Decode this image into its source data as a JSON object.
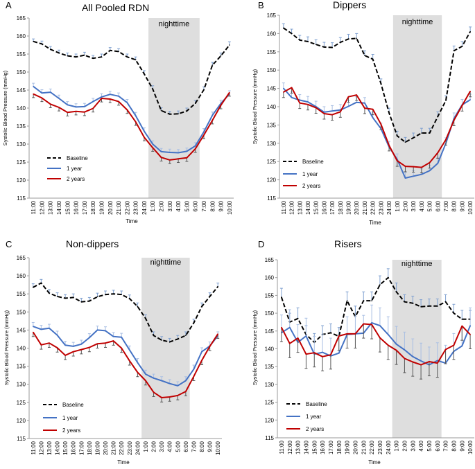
{
  "chart_data": [
    {
      "panel_letter": "A",
      "type": "line",
      "title": "All Pooled RDN",
      "xlabel": "Time",
      "ylabel": "Systolic Blood Pressure (mmHg)",
      "ylim": [
        115,
        165
      ],
      "yticks": [
        "115",
        "120",
        "125",
        "130",
        "135",
        "140",
        "145",
        "150",
        "155",
        "160",
        "165"
      ],
      "categories": [
        "11:00",
        "12:00",
        "13:00",
        "14:00",
        "15:00",
        "16:00",
        "17:00",
        "18:00",
        "19:00",
        "20:00",
        "21:00",
        "22:00",
        "23:00",
        "24:00",
        "1:00",
        "2:00",
        "3:00",
        "4:00",
        "5:00",
        "6:00",
        "7:00",
        "8:00",
        "9:00",
        "10:00"
      ],
      "night_label": "nighttime",
      "night_range": [
        14,
        19
      ],
      "series": [
        {
          "name": "Baseline",
          "style": "dashed",
          "color": "#000000",
          "values": [
            158.5,
            157.8,
            156.3,
            155.3,
            154.5,
            154.2,
            154.7,
            153.8,
            154.2,
            156.0,
            155.7,
            154.2,
            153.4,
            149.5,
            145.3,
            139.3,
            138.3,
            138.4,
            139.2,
            141.3,
            145.1,
            151.9,
            154.5,
            157.5
          ],
          "errors": [
            0.7,
            0.8,
            0.8,
            0.8,
            0.8,
            0.8,
            0.8,
            0.8,
            0.8,
            0.8,
            0.8,
            0.8,
            0.8,
            0.9,
            0.9,
            0.8,
            0.8,
            0.8,
            0.8,
            0.8,
            0.8,
            0.8,
            0.8,
            0.9
          ]
        },
        {
          "name": "1 year",
          "style": "solid",
          "color": "#4472C4",
          "values": [
            146.0,
            144.2,
            144.4,
            142.7,
            140.9,
            140.3,
            140.4,
            141.8,
            143.1,
            143.8,
            143.3,
            141.5,
            137.9,
            133.6,
            130.0,
            127.9,
            127.7,
            127.6,
            128.0,
            129.5,
            133.4,
            138.0,
            141.3,
            143.9
          ],
          "errors": [
            0.9,
            0.9,
            0.9,
            0.9,
            0.9,
            0.9,
            0.9,
            0.9,
            0.9,
            0.9,
            0.9,
            0.9,
            0.9,
            0.9,
            0.9,
            0.9,
            0.9,
            0.9,
            0.9,
            0.9,
            0.9,
            0.9,
            0.9,
            0.9
          ]
        },
        {
          "name": "2 years",
          "style": "solid",
          "color": "#C00000",
          "values": [
            143.9,
            142.8,
            141.1,
            140.2,
            138.8,
            139.1,
            138.9,
            139.9,
            142.7,
            142.5,
            141.8,
            139.5,
            136.2,
            131.9,
            129.0,
            126.3,
            125.6,
            125.9,
            126.2,
            128.7,
            132.5,
            136.6,
            140.8,
            144.3
          ],
          "errors": [
            1.0,
            1.0,
            1.0,
            1.0,
            1.0,
            1.0,
            1.0,
            1.0,
            1.0,
            1.0,
            1.0,
            1.0,
            1.0,
            1.0,
            1.0,
            1.0,
            1.0,
            1.0,
            1.0,
            1.0,
            1.0,
            1.0,
            1.0,
            1.0
          ]
        }
      ]
    },
    {
      "panel_letter": "B",
      "type": "line",
      "title": "Dippers",
      "xlabel": "Time",
      "ylabel": "Systolic Blood Pressure (mmHg)",
      "ylim": [
        115,
        165
      ],
      "yticks": [
        "115",
        "120",
        "125",
        "130",
        "135",
        "140",
        "145",
        "150",
        "155",
        "160",
        "165"
      ],
      "categories": [
        "11:00",
        "12:00",
        "13:00",
        "14:00",
        "15:00",
        "16:00",
        "17:00",
        "18:00",
        "19:00",
        "20:00",
        "21:00",
        "22:00",
        "23:00",
        "24:00",
        "1:00",
        "2:00",
        "3:00",
        "4:00",
        "5:00",
        "6:00",
        "7:00",
        "8:00",
        "9:00",
        "10:00"
      ],
      "night_label": "nighttime",
      "night_range": [
        14,
        19
      ],
      "series": [
        {
          "name": "Baseline",
          "style": "dashed",
          "color": "#000000",
          "values": [
            161.5,
            160.0,
            158.2,
            157.8,
            157.0,
            156.3,
            156.2,
            157.6,
            158.5,
            158.7,
            154.0,
            153.0,
            146.3,
            138.3,
            132.0,
            130.3,
            131.5,
            132.8,
            132.8,
            137.3,
            141.7,
            155.3,
            156.5,
            160.5
          ],
          "errors": [
            1.2,
            1.2,
            1.3,
            1.3,
            1.3,
            1.3,
            1.3,
            1.3,
            1.3,
            1.3,
            1.3,
            1.3,
            1.3,
            1.3,
            1.3,
            1.3,
            1.3,
            1.3,
            1.3,
            1.3,
            1.3,
            1.3,
            1.3,
            1.3
          ]
        },
        {
          "name": "1 year",
          "style": "solid",
          "color": "#4472C4",
          "values": [
            145.0,
            142.5,
            141.8,
            141.3,
            140.0,
            138.5,
            138.8,
            139.1,
            140.1,
            141.2,
            141.0,
            137.0,
            134.0,
            129.0,
            125.6,
            120.5,
            121.0,
            121.5,
            122.5,
            124.5,
            130.0,
            136.8,
            140.5,
            141.9
          ],
          "errors": [
            1.5,
            1.5,
            1.5,
            1.5,
            1.5,
            1.5,
            1.5,
            1.5,
            1.5,
            1.5,
            1.5,
            1.5,
            1.5,
            1.5,
            1.5,
            1.5,
            1.5,
            1.5,
            1.5,
            1.5,
            1.5,
            1.5,
            1.5,
            1.5
          ]
        },
        {
          "name": "2 years",
          "style": "solid",
          "color": "#C00000",
          "values": [
            144.0,
            145.2,
            141.0,
            140.6,
            139.7,
            138.1,
            137.8,
            138.6,
            142.7,
            143.2,
            139.6,
            139.3,
            135.2,
            129.4,
            125.2,
            123.7,
            123.6,
            123.4,
            124.7,
            127.4,
            131.0,
            136.3,
            140.3,
            144.2
          ],
          "errors": [
            1.5,
            1.5,
            1.5,
            1.5,
            1.5,
            1.5,
            1.5,
            1.5,
            1.5,
            1.5,
            1.5,
            1.5,
            1.5,
            1.5,
            1.5,
            1.5,
            1.5,
            1.5,
            1.5,
            1.5,
            1.5,
            1.5,
            1.5,
            1.5
          ]
        }
      ]
    },
    {
      "panel_letter": "C",
      "type": "line",
      "title": "Non-dippers",
      "xlabel": "Time",
      "ylabel": "Systolic Blood Pressure (mmHg)",
      "ylim": [
        115,
        165
      ],
      "yticks": [
        "115",
        "120",
        "125",
        "130",
        "135",
        "140",
        "145",
        "150",
        "155",
        "160",
        "165"
      ],
      "categories": [
        "11:00",
        "12:00",
        "13:00",
        "14:00",
        "15:00",
        "16:00",
        "17:00",
        "18:00",
        "19:00",
        "20:00",
        "21:00",
        "22:00",
        "23:00",
        "24:00",
        "1:00",
        "2:00",
        "3:00",
        "4:00",
        "5:00",
        "6:00",
        "7:00",
        "8:00",
        "9:00",
        "10:00"
      ],
      "night_label": "nighttime",
      "night_range": [
        14,
        19
      ],
      "series": [
        {
          "name": "Baseline",
          "style": "dashed",
          "color": "#000000",
          "values": [
            156.8,
            158.0,
            155.2,
            154.3,
            153.8,
            154.0,
            152.8,
            153.0,
            154.2,
            154.8,
            155.0,
            154.8,
            153.7,
            151.5,
            148.2,
            143.5,
            142.2,
            141.7,
            142.5,
            143.5,
            147.0,
            151.5,
            154.3,
            157.0
          ],
          "errors": [
            1.0,
            1.0,
            1.0,
            1.0,
            1.0,
            1.0,
            1.0,
            1.0,
            1.0,
            1.0,
            1.0,
            1.0,
            1.0,
            1.0,
            1.0,
            1.0,
            1.0,
            1.0,
            1.0,
            1.0,
            1.0,
            1.0,
            1.0,
            1.0
          ]
        },
        {
          "name": "1 year",
          "style": "solid",
          "color": "#4472C4",
          "values": [
            146.0,
            145.2,
            145.5,
            143.6,
            140.8,
            140.5,
            141.1,
            142.9,
            145.0,
            144.8,
            143.2,
            143.0,
            139.5,
            136.0,
            132.8,
            131.7,
            131.0,
            130.2,
            129.6,
            131.0,
            134.2,
            139.0,
            140.6,
            143.4
          ],
          "errors": [
            1.1,
            1.1,
            1.1,
            1.1,
            1.1,
            1.1,
            1.1,
            1.1,
            1.1,
            1.1,
            1.1,
            1.1,
            1.1,
            1.1,
            1.1,
            1.1,
            1.1,
            1.1,
            1.1,
            1.1,
            1.1,
            1.1,
            1.1,
            1.1
          ]
        },
        {
          "name": "2 years",
          "style": "solid",
          "color": "#C00000",
          "values": [
            144.4,
            140.9,
            141.4,
            140.1,
            138.0,
            139.0,
            139.6,
            140.2,
            141.2,
            141.4,
            142.0,
            140.0,
            136.5,
            133.3,
            131.0,
            127.8,
            126.3,
            126.5,
            126.9,
            128.0,
            132.2,
            136.6,
            140.5,
            143.9
          ],
          "errors": [
            1.2,
            1.2,
            1.2,
            1.2,
            1.2,
            1.2,
            1.2,
            1.2,
            1.2,
            1.2,
            1.2,
            1.2,
            1.2,
            1.2,
            1.2,
            1.2,
            1.2,
            1.2,
            1.2,
            1.2,
            1.2,
            1.2,
            1.2,
            1.2
          ]
        }
      ]
    },
    {
      "panel_letter": "D",
      "type": "line",
      "title": "Risers",
      "xlabel": "Time",
      "ylabel": "Systolic Blood Pressure (mmHg)",
      "ylim": [
        115,
        165
      ],
      "yticks": [
        "115",
        "120",
        "125",
        "130",
        "135",
        "140",
        "145",
        "150",
        "155",
        "160",
        "165"
      ],
      "categories": [
        "11:00",
        "12:00",
        "13:00",
        "14:00",
        "15:00",
        "16:00",
        "17:00",
        "18:00",
        "19:00",
        "20:00",
        "21:00",
        "22:00",
        "23:00",
        "24:00",
        "1:00",
        "2:00",
        "3:00",
        "4:00",
        "5:00",
        "6:00",
        "7:00",
        "8:00",
        "9:00",
        "10:00"
      ],
      "night_label": "nighttime",
      "night_range": [
        14,
        19
      ],
      "series": [
        {
          "name": "Baseline",
          "style": "dashed",
          "color": "#000000",
          "values": [
            154.5,
            147.5,
            148.5,
            144.0,
            141.8,
            144.0,
            144.5,
            143.5,
            153.5,
            149.0,
            153.5,
            153.5,
            158.0,
            160.0,
            156.0,
            153.2,
            152.8,
            151.8,
            152.0,
            152.0,
            153.2,
            150.0,
            148.3,
            148.3
          ],
          "errors": [
            2.5,
            2.5,
            3.0,
            2.5,
            2.5,
            2.5,
            2.5,
            2.5,
            2.5,
            3.0,
            2.5,
            2.5,
            2.5,
            2.5,
            2.5,
            2.0,
            2.0,
            2.0,
            2.0,
            2.0,
            2.0,
            2.5,
            2.5,
            2.5
          ]
        },
        {
          "name": "1 year",
          "style": "solid",
          "color": "#4472C4",
          "values": [
            144.5,
            146.0,
            141.8,
            143.6,
            138.5,
            139.0,
            138.0,
            138.8,
            144.0,
            144.2,
            144.4,
            147.3,
            146.5,
            144.0,
            141.3,
            139.7,
            137.8,
            136.6,
            135.5,
            136.7,
            136.0,
            139.3,
            140.8,
            146.5
          ],
          "errors": [
            5.0,
            5.0,
            5.0,
            5.0,
            5.0,
            5.0,
            5.0,
            5.0,
            5.0,
            5.0,
            5.0,
            5.0,
            5.0,
            5.0,
            5.0,
            5.0,
            5.0,
            5.0,
            5.0,
            5.0,
            5.0,
            5.0,
            5.0,
            5.0
          ]
        },
        {
          "name": "2 years",
          "style": "solid",
          "color": "#C00000",
          "values": [
            146.0,
            141.5,
            143.0,
            138.5,
            138.9,
            137.8,
            138.3,
            143.6,
            144.2,
            144.2,
            147.0,
            146.8,
            143.1,
            141.0,
            139.6,
            137.3,
            136.3,
            135.5,
            136.4,
            136.0,
            139.8,
            141.0,
            146.4,
            144.0
          ],
          "errors": [
            4.0,
            4.0,
            4.0,
            4.0,
            4.0,
            4.0,
            4.0,
            4.0,
            4.0,
            4.0,
            4.0,
            4.0,
            4.0,
            4.0,
            4.0,
            4.0,
            4.0,
            4.0,
            4.0,
            4.0,
            4.0,
            4.0,
            4.0,
            4.0
          ]
        }
      ]
    }
  ]
}
